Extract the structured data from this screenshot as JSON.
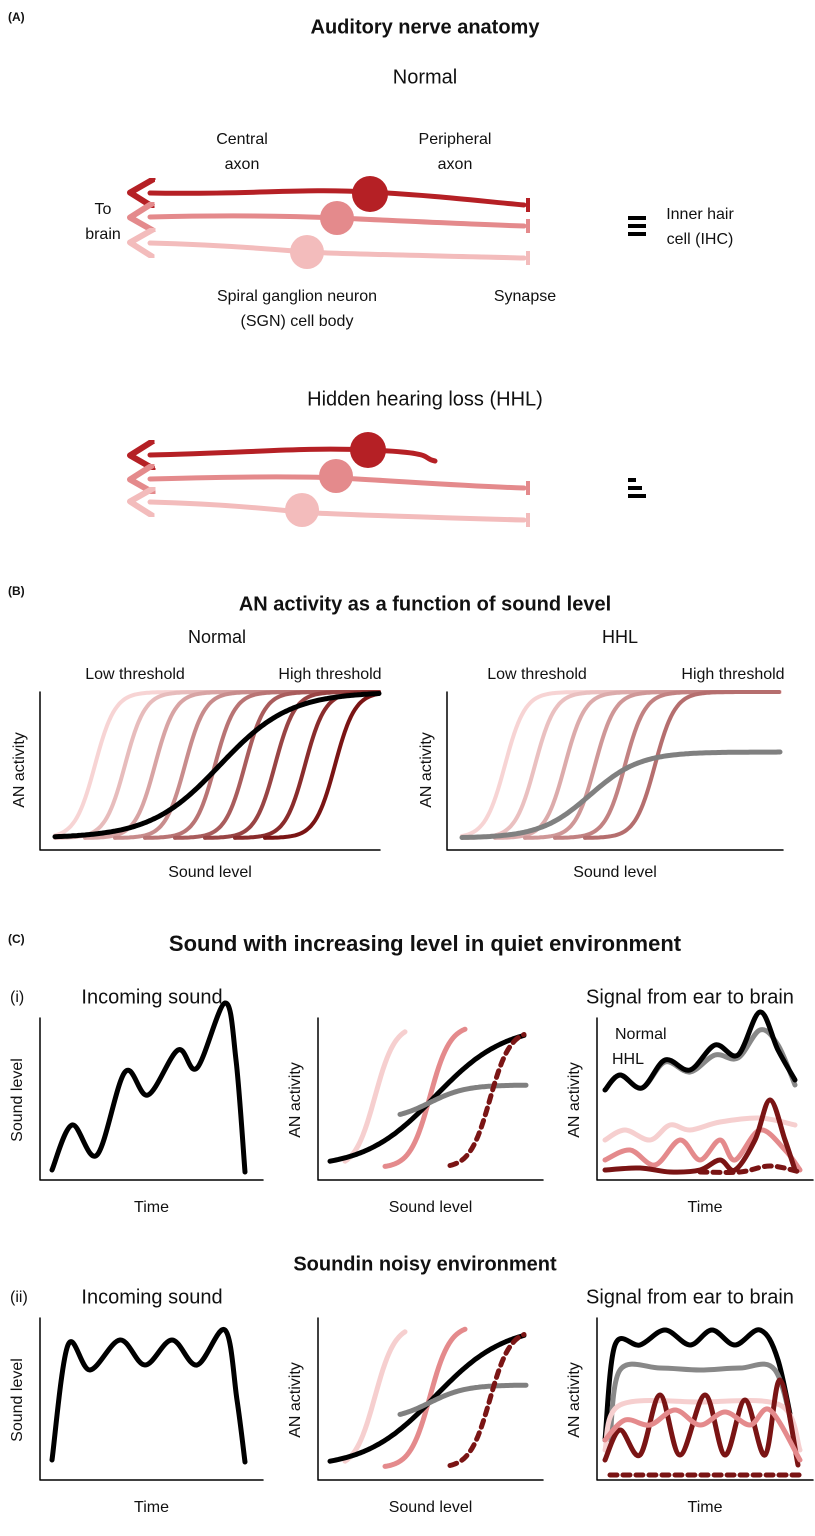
{
  "panel_a": {
    "label": "(A)",
    "title": "Auditory nerve anatomy",
    "normal_title": "Normal",
    "central_axon": [
      "Central",
      "axon"
    ],
    "peripheral_axon": [
      "Peripheral",
      "axon"
    ],
    "to_brain": [
      "To",
      "brain"
    ],
    "ihc": [
      "Inner hair",
      "cell (IHC)"
    ],
    "sgn": [
      "Spiral ganglion neuron",
      "(SGN) cell body"
    ],
    "synapse": "Synapse",
    "hhl_title": "Hidden hearing loss (HHL)"
  },
  "panel_b": {
    "label": "(B)",
    "title": "AN activity as a function of sound level",
    "normal": {
      "title": "Normal",
      "low": "Low threshold",
      "high": "High threshold",
      "y_label": "AN activity",
      "x_label": "Sound level"
    },
    "hhl": {
      "title": "HHL",
      "low": "Low threshold",
      "high": "High threshold",
      "y_label": "AN activity",
      "x_label": "Sound level"
    }
  },
  "panel_c": {
    "label": "(C)",
    "title": "Sound with increasing level in quiet environment",
    "rows": [
      {
        "label": "(i)",
        "incoming": "Incoming sound",
        "signal": "Signal from ear to brain",
        "legend": [
          "Normal",
          "HHL"
        ],
        "plots": [
          {
            "y_label": "Sound level",
            "x_label": "Time"
          },
          {
            "y_label": "AN activity",
            "x_label": "Sound level"
          },
          {
            "y_label": "AN activity",
            "x_label": "Time"
          }
        ]
      },
      {
        "title": "Soundin noisy environment",
        "label": "(ii)",
        "incoming": "Incoming sound",
        "signal": "Signal from ear to brain",
        "plots": [
          {
            "y_label": "Sound level",
            "x_label": "Time"
          },
          {
            "y_label": "AN activity",
            "x_label": "Sound level"
          },
          {
            "y_label": "AN activity",
            "x_label": "Time"
          }
        ]
      }
    ]
  }
}
